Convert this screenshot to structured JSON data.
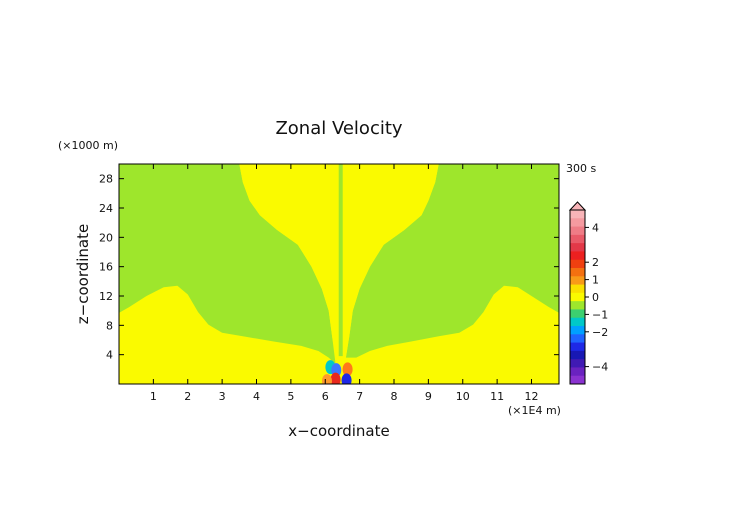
{
  "chart_data": {
    "type": "heatmap",
    "title": "Zonal Velocity",
    "xlabel": "x−coordinate",
    "ylabel": "z−coordinate",
    "x_unit": "(×1E4 m)",
    "y_unit": "(×1000 m)",
    "time_label": "300 s",
    "xlim": [
      0,
      12.8
    ],
    "ylim": [
      0,
      30
    ],
    "x_ticks": [
      1,
      2,
      3,
      4,
      5,
      6,
      7,
      8,
      9,
      10,
      11,
      12
    ],
    "y_ticks": [
      4,
      8,
      12,
      16,
      20,
      24,
      28
    ],
    "grid": false,
    "colors": {
      "zero_band": "#9ee62c",
      "positive_small": "#fafa00"
    },
    "regions": [
      {
        "name": "positive",
        "value": 0.5,
        "color": "#fafa00",
        "description_points": [
          [
            0,
            0
          ],
          [
            12.8,
            0
          ],
          [
            12.8,
            30
          ]
        ]
      },
      {
        "name": "near-zero",
        "value": 0,
        "color": "#9ee62c"
      }
    ],
    "boundaries": {
      "left_lower": [
        [
          0,
          9.7
        ],
        [
          0.3,
          10.5
        ],
        [
          0.8,
          12.0
        ],
        [
          1.3,
          13.2
        ],
        [
          1.7,
          13.4
        ],
        [
          2.0,
          12.2
        ],
        [
          2.3,
          9.8
        ],
        [
          2.6,
          8.1
        ],
        [
          3.0,
          7.0
        ],
        [
          3.6,
          6.5
        ],
        [
          4.5,
          5.8
        ],
        [
          5.3,
          5.2
        ],
        [
          5.8,
          4.5
        ],
        [
          6.1,
          3.6
        ],
        [
          6.3,
          2.7
        ]
      ],
      "left_upper": [
        [
          6.3,
          3.6
        ],
        [
          6.2,
          6.5
        ],
        [
          6.1,
          10.0
        ],
        [
          5.9,
          13.0
        ],
        [
          5.6,
          16.0
        ],
        [
          5.2,
          19.0
        ],
        [
          4.6,
          21.0
        ],
        [
          4.1,
          23.0
        ],
        [
          3.8,
          25.0
        ],
        [
          3.6,
          27.5
        ],
        [
          3.5,
          30.0
        ]
      ],
      "center_line_x": 6.45,
      "right_upper": [
        [
          6.6,
          3.6
        ],
        [
          6.7,
          6.5
        ],
        [
          6.8,
          10.0
        ],
        [
          7.0,
          13.0
        ],
        [
          7.3,
          16.0
        ],
        [
          7.7,
          19.0
        ],
        [
          8.3,
          21.0
        ],
        [
          8.8,
          23.0
        ],
        [
          9.0,
          25.0
        ],
        [
          9.2,
          27.5
        ],
        [
          9.3,
          30.0
        ]
      ],
      "right_lower": [
        [
          6.6,
          2.7
        ],
        [
          6.9,
          3.6
        ],
        [
          7.3,
          4.5
        ],
        [
          7.8,
          5.2
        ],
        [
          8.5,
          5.8
        ],
        [
          9.3,
          6.5
        ],
        [
          9.9,
          7.0
        ],
        [
          10.3,
          8.1
        ],
        [
          10.6,
          9.8
        ],
        [
          10.9,
          12.2
        ],
        [
          11.2,
          13.4
        ],
        [
          11.6,
          13.2
        ],
        [
          12.0,
          12.0
        ],
        [
          12.5,
          10.5
        ],
        [
          12.8,
          9.7
        ]
      ]
    },
    "anomalies": [
      {
        "x": 6.15,
        "z": 2.3,
        "color": "#00c8c8"
      },
      {
        "x": 6.32,
        "z": 1.9,
        "color": "#3c78ff"
      },
      {
        "x": 6.65,
        "z": 2.0,
        "color": "#ff7a1a"
      },
      {
        "x": 6.3,
        "z": 0.6,
        "color": "#e8281e"
      },
      {
        "x": 6.62,
        "z": 0.5,
        "color": "#1e28e6"
      },
      {
        "x": 6.05,
        "z": 0.4,
        "color": "#ff9b2a"
      }
    ],
    "colorbar": {
      "labels": [
        "4",
        "2",
        "1",
        "0",
        "−1",
        "−2",
        "−4"
      ],
      "label_values": [
        4,
        2,
        1,
        0,
        -1,
        -2,
        -4
      ],
      "levels": [
        5,
        4.5,
        4,
        3.5,
        3,
        2.5,
        2,
        1.5,
        1,
        0.5,
        0,
        -0.5,
        -1,
        -1.5,
        -2,
        -2.5,
        -3,
        -3.5,
        -4,
        -4.5,
        -5
      ],
      "colors": [
        "#f8b4b8",
        "#f59aa0",
        "#ef7c86",
        "#e95a68",
        "#e33848",
        "#ec2020",
        "#f04010",
        "#f47010",
        "#f89a18",
        "#fae000",
        "#fafa00",
        "#9ee62c",
        "#3cd070",
        "#00c8c8",
        "#00a0ff",
        "#1e64ff",
        "#1e28e6",
        "#1818b4",
        "#401ab4",
        "#6a22c0",
        "#8a32d0"
      ]
    }
  }
}
